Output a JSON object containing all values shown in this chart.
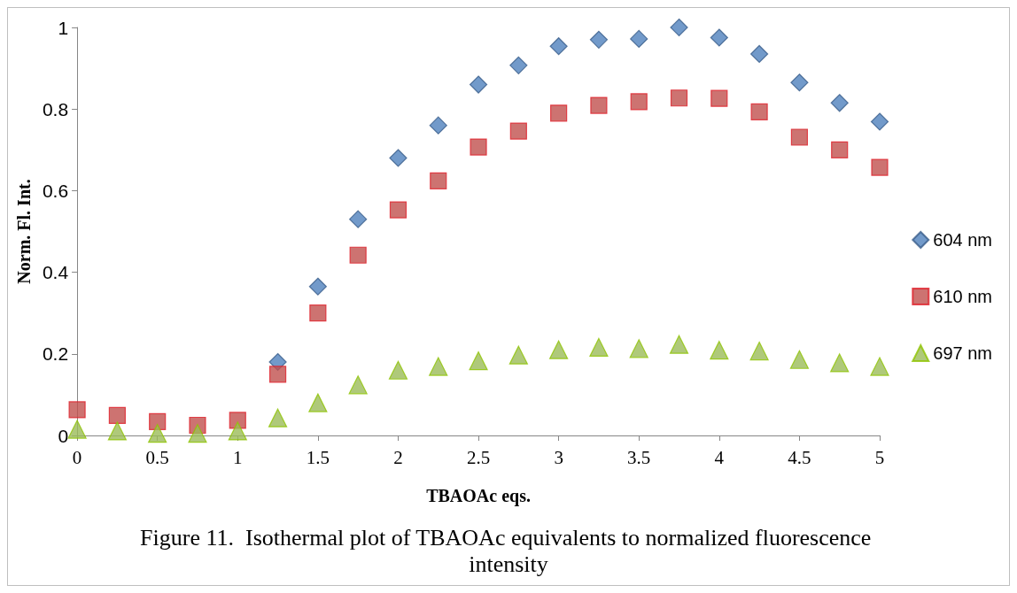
{
  "chart_data": {
    "type": "scatter",
    "title": "Figure 11.  Isothermal plot of TBAOAc equivalents to normalized fluorescence intensity",
    "xlabel": "TBAOAc eqs.",
    "ylabel": "Norm. Fl. Int.",
    "x": [
      0,
      0.25,
      0.5,
      0.75,
      1,
      1.25,
      1.5,
      1.75,
      2,
      2.25,
      2.5,
      2.75,
      3,
      3.25,
      3.5,
      3.75,
      4,
      4.25,
      4.5,
      4.75,
      5
    ],
    "series": [
      {
        "name": "604 nm",
        "color": "#4f81bd",
        "marker": "diamond",
        "values": [
          null,
          null,
          null,
          null,
          null,
          0.18,
          0.365,
          0.53,
          0.68,
          0.76,
          0.86,
          0.907,
          0.954,
          0.97,
          0.972,
          1.0,
          0.975,
          0.935,
          0.865,
          0.815,
          0.769
        ]
      },
      {
        "name": "610 nm",
        "color": "#c0504d",
        "marker": "square",
        "values": [
          0.063,
          0.049,
          0.034,
          0.025,
          0.037,
          0.15,
          0.3,
          0.442,
          0.553,
          0.624,
          0.707,
          0.746,
          0.79,
          0.809,
          0.818,
          0.827,
          0.826,
          0.793,
          0.731,
          0.7,
          0.657
        ]
      },
      {
        "name": "697 nm",
        "color": "#9bbb59",
        "marker": "triangle",
        "values": [
          0.015,
          0.011,
          0.005,
          0.005,
          0.011,
          0.043,
          0.08,
          0.124,
          0.16,
          0.169,
          0.183,
          0.197,
          0.21,
          0.216,
          0.213,
          0.223,
          0.209,
          0.207,
          0.186,
          0.178,
          0.169
        ]
      }
    ],
    "xlim": [
      0,
      5
    ],
    "xticks": [
      0,
      0.5,
      1,
      1.5,
      2,
      2.5,
      3,
      3.5,
      4,
      4.5,
      5
    ],
    "ylim": [
      0,
      1
    ],
    "yticks": [
      0,
      0.2,
      0.4,
      0.6,
      0.8,
      1
    ],
    "grid": false,
    "legend": "right"
  }
}
